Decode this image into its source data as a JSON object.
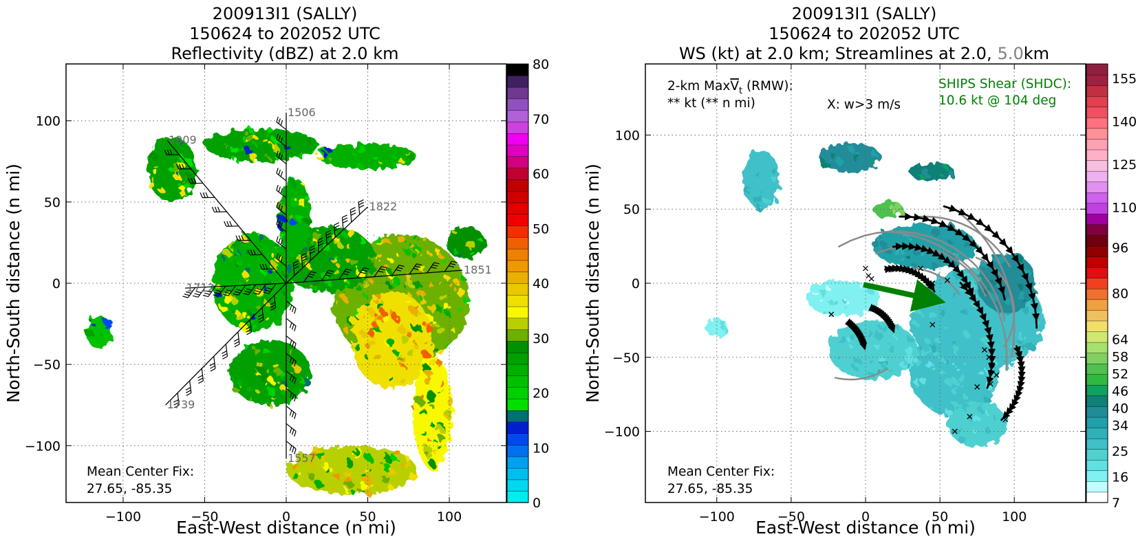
{
  "colors": {
    "refl_scale": [
      "#00eded",
      "#00d8f0",
      "#00bff0",
      "#00a0f0",
      "#0070f0",
      "#0048f0",
      "#0020d0",
      "#007070",
      "#00e000",
      "#00d000",
      "#00c000",
      "#00b000",
      "#00a000",
      "#009000",
      "#6cb000",
      "#b8d000",
      "#f8f800",
      "#f0e000",
      "#e8c800",
      "#e8b000",
      "#f09800",
      "#f08000",
      "#f06000",
      "#f03000",
      "#f00000",
      "#e00000",
      "#d00000",
      "#c00000",
      "#c00030",
      "#d00080",
      "#e000c0",
      "#f000f0",
      "#d040e0",
      "#b060d8",
      "#9050c0",
      "#703890",
      "#402060",
      "#000000"
    ],
    "ws_scale": [
      "#ffffff",
      "#c0ffff",
      "#80f0f0",
      "#60e0e0",
      "#50d0d0",
      "#40c0c8",
      "#30b0b8",
      "#20a0a8",
      "#208c98",
      "#108078",
      "#10a060",
      "#30b840",
      "#50c050",
      "#80d060",
      "#a8e070",
      "#d0e870",
      "#f0e068",
      "#f0c060",
      "#f0a040",
      "#f07030",
      "#f04020",
      "#e01010",
      "#c00000",
      "#900000",
      "#700010",
      "#800040",
      "#a000a0",
      "#c040e0",
      "#d060f0",
      "#e090f0",
      "#f0b0f0",
      "#f8c0e0",
      "#ffb0c8",
      "#ffa0b0",
      "#ff9098",
      "#ff7080",
      "#f05060",
      "#e04050",
      "#c03040",
      "#a02040",
      "#902040"
    ],
    "streamline_black": "#000000",
    "streamline_gray": "#8a8a8a",
    "shear_arrow": "#008000",
    "ships_text": "#008000",
    "flight_label": "#666666",
    "height_gray": "#808080"
  },
  "left_panel": {
    "title": {
      "line1": "200913I1 (SALLY)",
      "line2": "150624 to 202052 UTC",
      "line3": "Reflectivity (dBZ) at 2.0 km"
    },
    "xlabel": "East-West distance (n mi)",
    "ylabel": "North-South distance (n mi)",
    "xticks": [
      "−100",
      "−50",
      "0",
      "50",
      "100"
    ],
    "yticks": [
      "100",
      "50",
      "0",
      "−50",
      "−100"
    ],
    "colorbar_ticks": [
      "80",
      "70",
      "60",
      "50",
      "40",
      "30",
      "20",
      "10",
      "0"
    ],
    "center_fix": {
      "line1": "Mean Center Fix:",
      "line2": "27.65, -85.35"
    },
    "flight_labels": [
      "1506",
      "1909",
      "1822",
      "1851",
      "1712",
      "1739",
      "1557"
    ]
  },
  "right_panel": {
    "title": {
      "line1": "200913I1 (SALLY)",
      "line2": "150624 to 202052 UTC",
      "line3_a": "WS (kt) at 2.0 km; Streamlines at 2.0,",
      "line3_b": "5.0",
      "line3_c": "km"
    },
    "xlabel": "East-West distance (n mi)",
    "ylabel": "North-South distance (n mi)",
    "xticks": [
      "−100",
      "−50",
      "0",
      "50",
      "100"
    ],
    "yticks": [
      "100",
      "50",
      "0",
      "−50",
      "−100"
    ],
    "colorbar_ticks": [
      "155",
      "140",
      "125",
      "110",
      "96",
      "80",
      "64",
      "58",
      "52",
      "46",
      "40",
      "34",
      "25",
      "16",
      "7"
    ],
    "maxvt": {
      "line1_a": "2-km Max",
      "line1_v": "V",
      "line1_t": "t",
      "line1_b": " (RMW):",
      "line2": "** kt (** n mi)"
    },
    "w_note": "X: w>3 m/s",
    "ships": {
      "line1": "SHIPS Shear (SHDC):",
      "line2": "10.6 kt @ 104 deg"
    },
    "center_fix": {
      "line1": "Mean Center Fix:",
      "line2": "27.65, -85.35"
    }
  },
  "chart_data": [
    {
      "type": "heatmap",
      "title": "200913I1 (SALLY) 150624 to 202052 UTC Reflectivity (dBZ) at 2.0 km",
      "xlabel": "East-West distance (n mi)",
      "ylabel": "North-South distance (n mi)",
      "xlim": [
        -135,
        135
      ],
      "ylim": [
        -135,
        135
      ],
      "grid": true,
      "colorbar": {
        "label": "dBZ",
        "min": 0,
        "max": 80,
        "ticks": [
          0,
          10,
          20,
          30,
          40,
          50,
          60,
          70,
          80
        ]
      },
      "echo_regions": [
        {
          "cx": 70,
          "cy": -10,
          "rx": 42,
          "ry": 40,
          "value": 30
        },
        {
          "cx": 65,
          "cy": -35,
          "rx": 25,
          "ry": 30,
          "value": 36
        },
        {
          "cx": 90,
          "cy": -80,
          "rx": 12,
          "ry": 35,
          "value": 34
        },
        {
          "cx": 25,
          "cy": 15,
          "rx": 30,
          "ry": 20,
          "value": 27
        },
        {
          "cx": 5,
          "cy": 40,
          "rx": 10,
          "ry": 25,
          "value": 24
        },
        {
          "cx": -20,
          "cy": 0,
          "rx": 25,
          "ry": 30,
          "value": 25
        },
        {
          "cx": -10,
          "cy": -55,
          "rx": 25,
          "ry": 20,
          "value": 27
        },
        {
          "cx": -70,
          "cy": 70,
          "rx": 15,
          "ry": 20,
          "value": 27
        },
        {
          "cx": -15,
          "cy": 85,
          "rx": 35,
          "ry": 10,
          "value": 26
        },
        {
          "cx": 50,
          "cy": 78,
          "rx": 30,
          "ry": 8,
          "value": 25
        },
        {
          "cx": 40,
          "cy": -115,
          "rx": 40,
          "ry": 15,
          "value": 32
        },
        {
          "cx": -115,
          "cy": -30,
          "rx": 8,
          "ry": 10,
          "value": 22
        },
        {
          "cx": 110,
          "cy": 25,
          "rx": 12,
          "ry": 10,
          "value": 28
        }
      ],
      "flight_track": [
        {
          "label": "1506",
          "x": 0,
          "y": 105
        },
        {
          "label": "1909",
          "x": -73,
          "y": 88
        },
        {
          "label": "1822",
          "x": 50,
          "y": 47
        },
        {
          "label": "1851",
          "x": 108,
          "y": 8
        },
        {
          "label": "1712",
          "x": -62,
          "y": -3
        },
        {
          "label": "1739",
          "x": -74,
          "y": -75
        },
        {
          "label": "1557",
          "x": 0,
          "y": -108
        }
      ]
    },
    {
      "type": "heatmap",
      "title": "200913I1 (SALLY) 150624 to 202052 UTC WS (kt) at 2.0 km; Streamlines at 2.0, 5.0km",
      "xlabel": "East-West distance (n mi)",
      "ylabel": "North-South distance (n mi)",
      "xlim": [
        -148,
        148
      ],
      "ylim": [
        -148,
        148
      ],
      "grid": true,
      "colorbar": {
        "label": "kt",
        "min": 7,
        "max": 160,
        "ticks": [
          7,
          16,
          25,
          34,
          40,
          46,
          52,
          58,
          64,
          80,
          96,
          110,
          125,
          140,
          155
        ]
      },
      "wind_regions": [
        {
          "cx": 75,
          "cy": -25,
          "rx": 45,
          "ry": 35,
          "value": 27
        },
        {
          "cx": 60,
          "cy": -60,
          "rx": 30,
          "ry": 30,
          "value": 26
        },
        {
          "cx": 75,
          "cy": -95,
          "rx": 20,
          "ry": 15,
          "value": 24
        },
        {
          "cx": 95,
          "cy": 0,
          "rx": 20,
          "ry": 20,
          "value": 38
        },
        {
          "cx": 40,
          "cy": 25,
          "rx": 35,
          "ry": 15,
          "value": 36
        },
        {
          "cx": -15,
          "cy": -10,
          "rx": 25,
          "ry": 12,
          "value": 18
        },
        {
          "cx": 5,
          "cy": -45,
          "rx": 30,
          "ry": 20,
          "value": 25
        },
        {
          "cx": -70,
          "cy": 70,
          "rx": 12,
          "ry": 20,
          "value": 28
        },
        {
          "cx": -10,
          "cy": 85,
          "rx": 20,
          "ry": 10,
          "value": 40
        },
        {
          "cx": 45,
          "cy": 75,
          "rx": 15,
          "ry": 6,
          "value": 42
        },
        {
          "cx": 15,
          "cy": 50,
          "rx": 10,
          "ry": 6,
          "value": 55
        },
        {
          "cx": -100,
          "cy": -30,
          "rx": 8,
          "ry": 6,
          "value": 18
        }
      ],
      "shear": {
        "speed_kt": 10.6,
        "direction_deg": 104
      },
      "w_markers": [
        {
          "x": 0,
          "y": 10
        },
        {
          "x": 2,
          "y": 5
        },
        {
          "x": 4,
          "y": 3
        },
        {
          "x": 20,
          "y": 10
        },
        {
          "x": 37,
          "y": 10
        },
        {
          "x": 45,
          "y": 0
        },
        {
          "x": 55,
          "y": 2
        },
        {
          "x": 45,
          "y": -28
        },
        {
          "x": -23,
          "y": -21
        },
        {
          "x": 80,
          "y": -45
        },
        {
          "x": 83,
          "y": -50
        },
        {
          "x": 85,
          "y": -55
        },
        {
          "x": 88,
          "y": -62
        },
        {
          "x": 84,
          "y": -68
        },
        {
          "x": 75,
          "y": -70
        },
        {
          "x": 94,
          "y": -92
        },
        {
          "x": 60,
          "y": -100
        },
        {
          "x": 70,
          "y": -90
        }
      ]
    }
  ]
}
